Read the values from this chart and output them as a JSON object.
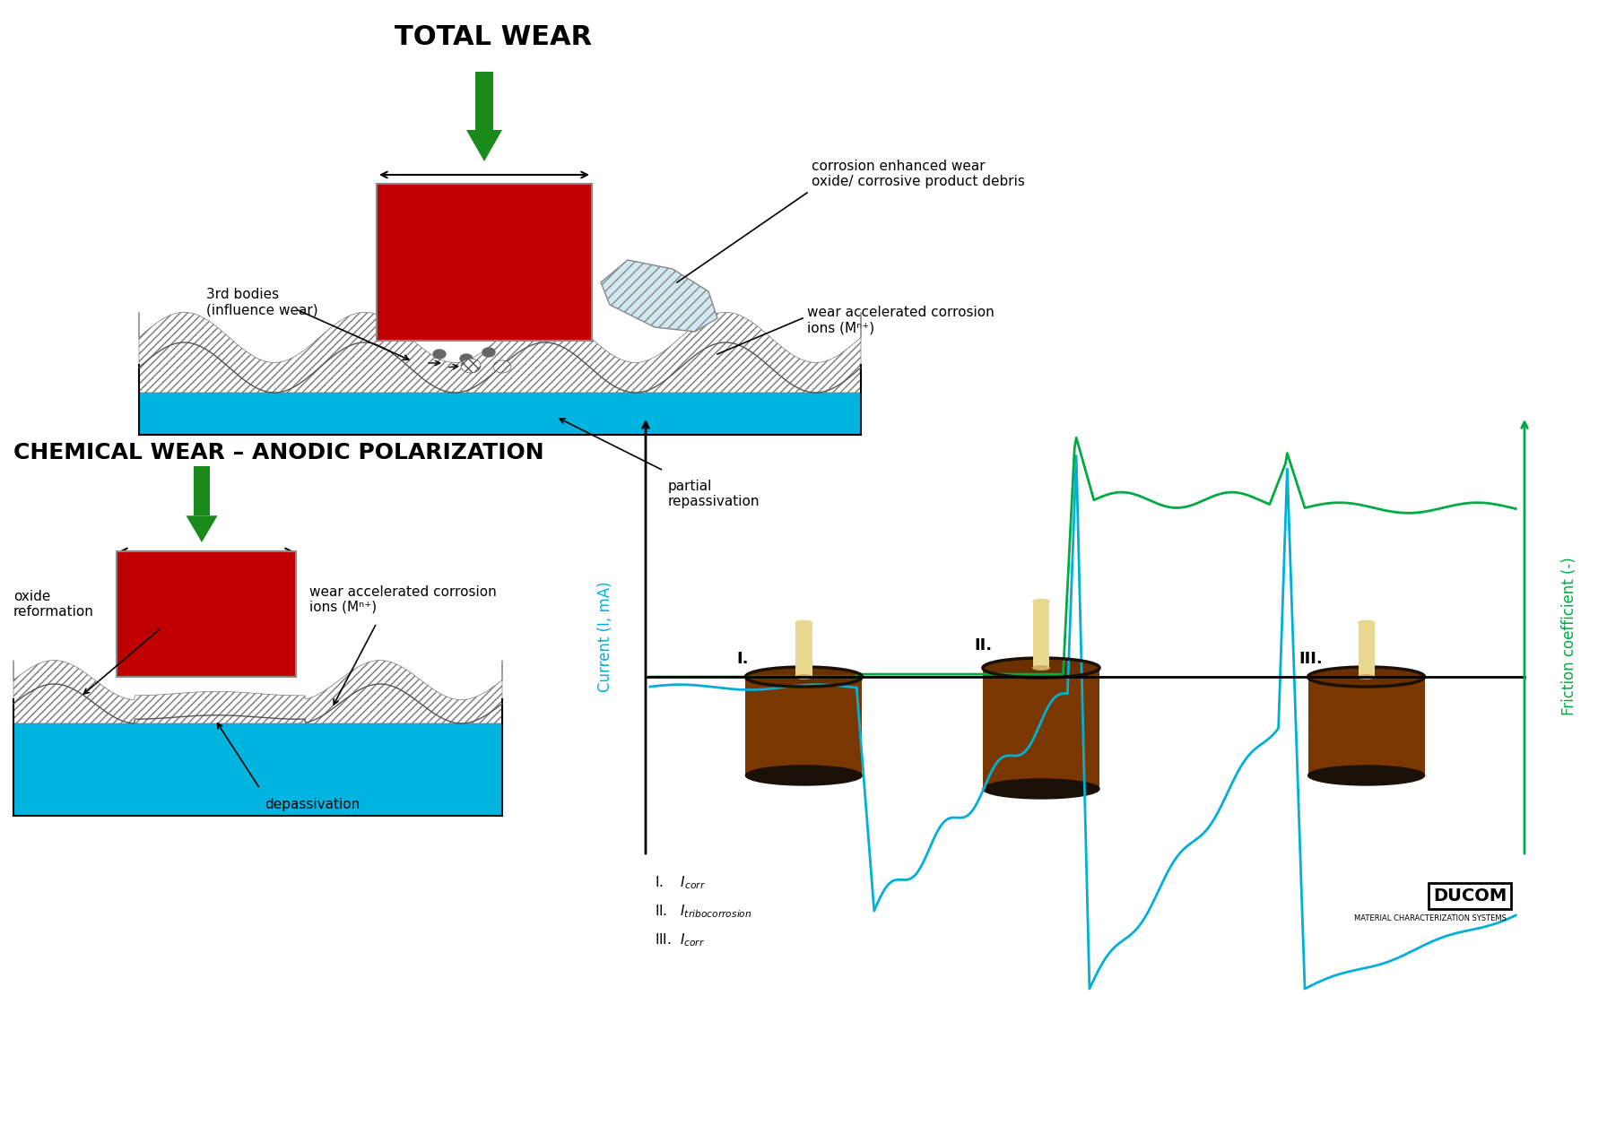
{
  "title": "TOTAL WEAR",
  "title2": "CHEMICAL WEAR – ANODIC POLARIZATION",
  "bg_color": "#ffffff",
  "green_arrow_color": "#1a8a1a",
  "red_box_color": "#c00000",
  "blue_color": "#00b4e0",
  "text_color": "#000000",
  "cyan_line_color": "#00b0d8",
  "green_line_color": "#00aa44",
  "graph_xlabel": "Current (I, mA)",
  "graph_ylabel": "Friction coefficient (-)",
  "cyl_brown": "#7a3800",
  "cyl_dark": "#1a1008",
  "cyl_top": "#6a3000",
  "pin_color": "#e8d890"
}
